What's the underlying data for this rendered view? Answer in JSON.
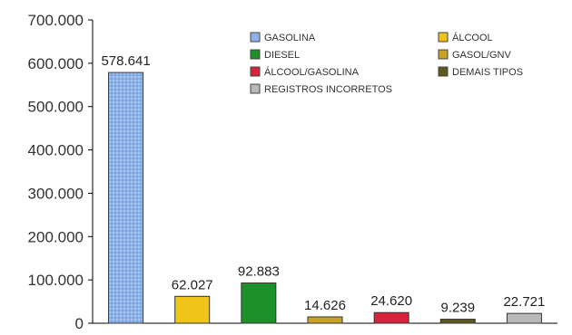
{
  "chart_data": {
    "type": "bar",
    "title": "",
    "xlabel": "",
    "ylabel": "",
    "ylim": [
      0,
      700000
    ],
    "yticks": [
      0,
      100000,
      200000,
      300000,
      400000,
      500000,
      600000,
      700000
    ],
    "ytick_labels": [
      "0",
      "100.000",
      "200.000",
      "300.000",
      "400.000",
      "500.000",
      "600.000",
      "700.000"
    ],
    "grid": false,
    "legend_position": "top-right",
    "series": [
      {
        "name": "GASOLINA",
        "value": 578641,
        "label": "578.641",
        "color": "#8fb3e8"
      },
      {
        "name": "ÁLCOOL",
        "value": 62027,
        "label": "62.027",
        "color": "#f0c419"
      },
      {
        "name": "DIESEL",
        "value": 92883,
        "label": "92.883",
        "color": "#1f8f2a"
      },
      {
        "name": "GASOL/GNV",
        "value": 14626,
        "label": "14.626",
        "color": "#c9a227"
      },
      {
        "name": "ÁLCOOL/GASOLINA",
        "value": 24620,
        "label": "24.620",
        "color": "#d6223a"
      },
      {
        "name": "DEMAIS TIPOS",
        "value": 9239,
        "label": "9.239",
        "color": "#5b5a1c"
      },
      {
        "name": "REGISTROS INCORRETOS",
        "value": 22721,
        "label": "22.721",
        "color": "#b8b8b8"
      }
    ],
    "legend_order": [
      "GASOLINA",
      "ÁLCOOL",
      "DIESEL",
      "GASOL/GNV",
      "ÁLCOOL/GASOLINA",
      "DEMAIS TIPOS",
      "REGISTROS INCORRETOS"
    ]
  }
}
